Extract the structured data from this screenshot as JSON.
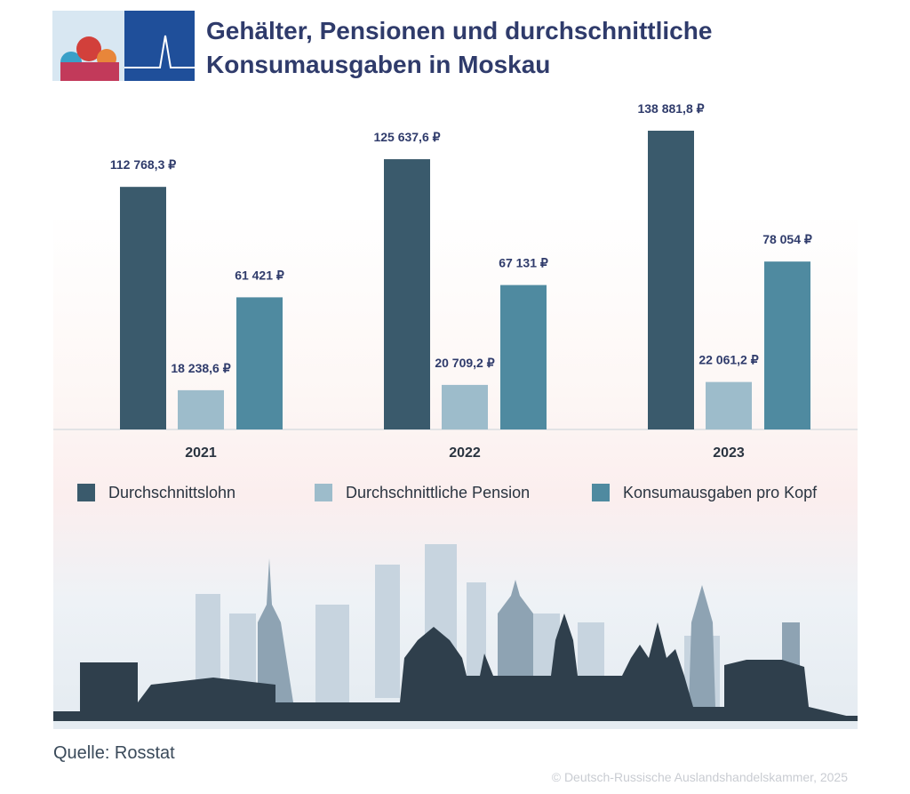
{
  "chart_data": {
    "type": "bar",
    "title": "Gehälter, Pensionen und durchschnittliche Konsumausgaben in Moskau",
    "categories": [
      "2021",
      "2022",
      "2023"
    ],
    "series": [
      {
        "name": "Durchschnittslohn",
        "color": "#3a5a6c",
        "values": [
          112768.3,
          125637.6,
          138881.8
        ],
        "value_labels": [
          "112 768,3 ₽",
          "125 637,6 ₽",
          "138 881,8 ₽"
        ]
      },
      {
        "name": "Durchschnittliche Pension",
        "color": "#9dbccb",
        "values": [
          18238.6,
          20709.2,
          22061.2
        ],
        "value_labels": [
          "18 238,6 ₽",
          "20 709,2 ₽",
          "22 061,2 ₽"
        ]
      },
      {
        "name": "Konsumausgaben pro Kopf",
        "color": "#4f8aa0",
        "values": [
          61421,
          67131,
          78054
        ],
        "value_labels": [
          "61 421 ₽",
          "67 131 ₽",
          "78 054 ₽"
        ]
      }
    ],
    "source": "Quelle: Rosstat",
    "copyright": "© Deutsch-Russische Auslandshandelskammer, 2025"
  }
}
